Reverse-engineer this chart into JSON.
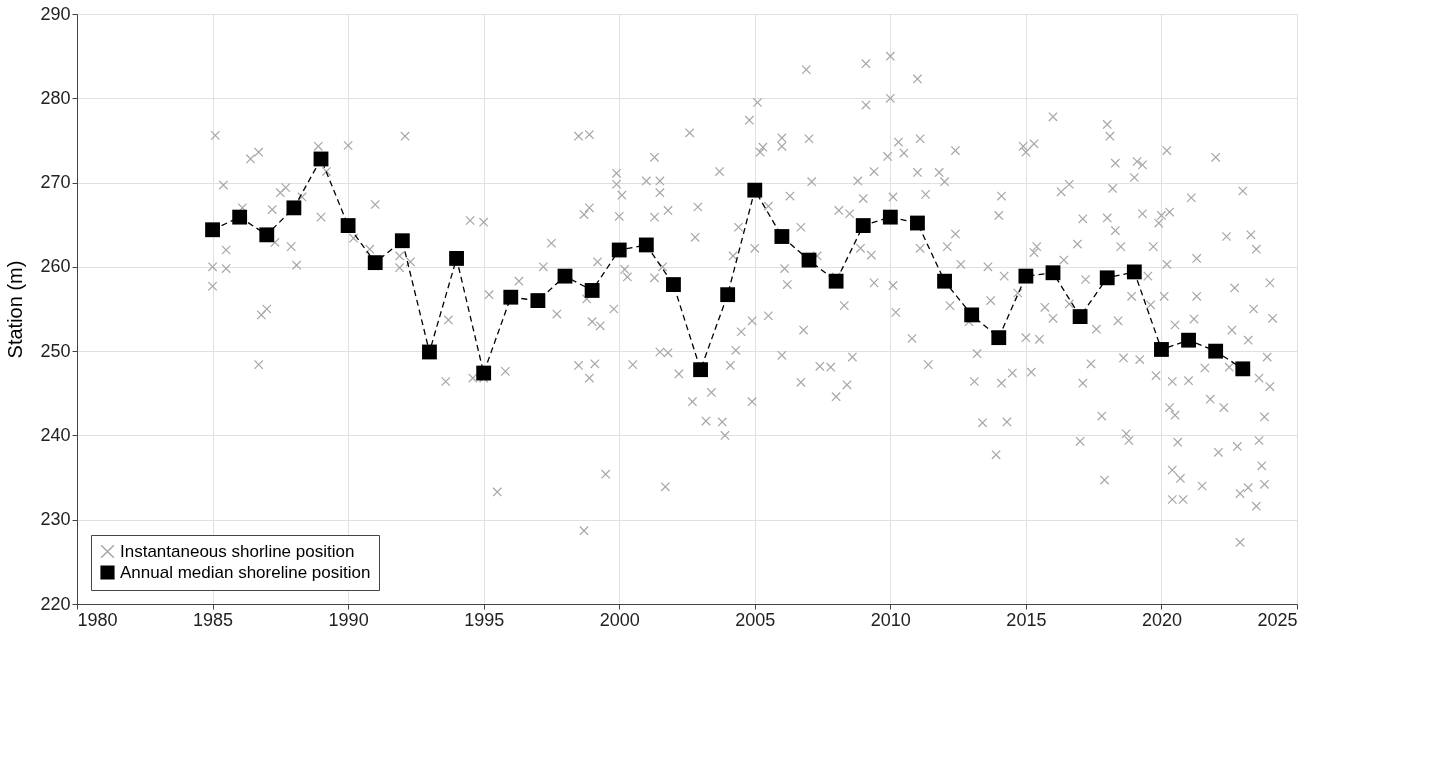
{
  "chart_data": {
    "type": "scatter",
    "ylabel": "Station (m)",
    "xlim": [
      1980,
      2025
    ],
    "xticks": [
      1980,
      1985,
      1990,
      1995,
      2000,
      2005,
      2010,
      2015,
      2020,
      2025
    ],
    "ylim": [
      220,
      290
    ],
    "yticks": [
      220,
      230,
      240,
      250,
      260,
      270,
      280,
      290
    ],
    "grid": true,
    "legend": "bottom left",
    "series": [
      {
        "name": "Instantaneous shorline position",
        "marker": "cross",
        "color": "#a6a6a6",
        "x": [
          1985.1,
          1985.0,
          1985.0,
          1985.4,
          1985.5,
          1985.5,
          1986.4,
          1986.7,
          1986.7,
          1986.8,
          1987.0,
          1986.1,
          1987.2,
          1987.5,
          1987.7,
          1987.3,
          1987.9,
          1988.1,
          1988.9,
          1989.0,
          1989.2,
          1988.3,
          1990.0,
          1990.2,
          1990.8,
          1991.0,
          1991.9,
          1992.1,
          1991.9,
          1992.3,
          1993.6,
          1993.7,
          1994.5,
          1994.6,
          1995.0,
          1995.0,
          1995.2,
          1995.5,
          1995.8,
          1996.3,
          1997.2,
          1997.5,
          1997.7,
          1998.5,
          1998.9,
          1998.5,
          1998.7,
          1998.9,
          1998.9,
          1998.8,
          1998.7,
          1999.1,
          1999.0,
          1999.3,
          1999.5,
          1999.2,
          1999.9,
          1999.9,
          2000.1,
          2000.0,
          2000.3,
          2000.5,
          2000.2,
          1999.8,
          2001.3,
          2001.0,
          2001.5,
          2001.5,
          2001.3,
          2001.8,
          2001.6,
          2001.3,
          2001.5,
          2001.8,
          2001.7,
          2002.2,
          2002.6,
          2002.8,
          2002.9,
          2002.7,
          2003.2,
          2003.4,
          2003.7,
          2003.9,
          2003.8,
          2004.2,
          2004.4,
          2004.5,
          2004.3,
          2004.1,
          2004.8,
          2005.1,
          2005.2,
          2005.3,
          2004.9,
          2005.0,
          2004.9,
          2005.5,
          2005.5,
          2006.0,
          2006.0,
          2006.3,
          2006.1,
          2006.0,
          2006.2,
          2006.9,
          2007.0,
          2007.1,
          2006.7,
          2007.3,
          2007.4,
          2006.8,
          2006.7,
          2007.8,
          2008.0,
          2008.4,
          2008.1,
          2008.5,
          2008.3,
          2008.6,
          2008.0,
          2008.8,
          2009.0,
          2009.1,
          2009.1,
          2009.4,
          2009.3,
          2009.4,
          2008.9,
          2010.0,
          2010.0,
          2009.9,
          2010.3,
          2010.1,
          2010.1,
          2010.2,
          2010.5,
          2011.0,
          2011.1,
          2011.0,
          2010.8,
          2011.1,
          2011.3,
          2011.4,
          2011.8,
          2012.0,
          2012.1,
          2012.4,
          2012.4,
          2012.2,
          2012.6,
          2012.9,
          2013.1,
          2013.4,
          2013.6,
          2013.2,
          2013.7,
          2013.9,
          2014.1,
          2014.0,
          2014.2,
          2014.3,
          2014.1,
          2014.5,
          2014.7,
          2014.9,
          2015.0,
          2015.3,
          2015.0,
          2015.3,
          2015.5,
          2015.2,
          2015.4,
          2015.7,
          2016.0,
          2016.3,
          2016.6,
          2016.4,
          2016.0,
          2016.6,
          2016.9,
          2017.1,
          2017.2,
          2017.1,
          2017.0,
          2017.6,
          2017.4,
          2017.8,
          2017.9,
          2018.0,
          2018.1,
          2018.3,
          2018.2,
          2018.3,
          2018.0,
          2018.4,
          2018.6,
          2018.7,
          2018.8,
          2018.5,
          2018.9,
          2019.1,
          2019.3,
          2019.0,
          2019.3,
          2019.5,
          2019.2,
          2019.6,
          2019.8,
          2019.9,
          2019.7,
          2020.0,
          2020.3,
          2020.2,
          2020.1,
          2020.4,
          2020.5,
          2020.3,
          2020.6,
          2020.4,
          2020.7,
          2020.4,
          2020.8,
          2020.2,
          2020.5,
          2021.0,
          2021.1,
          2021.3,
          2021.2,
          2021.6,
          2021.5,
          2021.8,
          2021.3,
          2022.0,
          2022.1,
          2022.4,
          2022.5,
          2022.3,
          2022.6,
          2022.8,
          2022.7,
          2022.9,
          2022.9,
          2023.0,
          2023.2,
          2023.2,
          2023.4,
          2023.3,
          2023.5,
          2023.6,
          2023.5,
          2023.7,
          2023.8,
          2023.6,
          2023.9,
          2024.0,
          2024.1,
          2023.8,
          2024.0
        ],
        "values": [
          275.6,
          260,
          257.7,
          269.7,
          262,
          259.8,
          272.8,
          273.6,
          248.4,
          254.3,
          255,
          267,
          266.8,
          268.8,
          269.4,
          262.9,
          262.4,
          260.2,
          274.3,
          265.9,
          271.3,
          268.3,
          274.4,
          263.4,
          262.1,
          267.4,
          261.3,
          275.5,
          259.9,
          260.6,
          246.4,
          253.7,
          265.5,
          246.8,
          265.3,
          246.8,
          256.7,
          233.3,
          247.6,
          258.3,
          260,
          262.8,
          254.4,
          275.5,
          275.7,
          248.3,
          266.2,
          267,
          246.8,
          256.2,
          228.7,
          248.5,
          253.5,
          253.0,
          235.4,
          260.6,
          271.1,
          269.8,
          268.5,
          266,
          258.8,
          248.4,
          259.7,
          255,
          273,
          270.2,
          270.2,
          268.8,
          265.9,
          266.7,
          260,
          258.7,
          249.9,
          249.8,
          233.9,
          247.3,
          275.9,
          263.5,
          267.1,
          244,
          241.7,
          245.1,
          271.3,
          240,
          241.6,
          261.3,
          264.7,
          252.3,
          250.1,
          248.3,
          277.4,
          279.5,
          273.6,
          274.2,
          244,
          262.2,
          253.6,
          254.2,
          267.2,
          275.3,
          274.3,
          268.4,
          259.8,
          249.5,
          257.9,
          283.4,
          275.2,
          270.1,
          264.7,
          261.3,
          248.2,
          252.5,
          246.3,
          248.1,
          244.6,
          246,
          266.7,
          266.3,
          255.4,
          249.3,
          258.8,
          270.2,
          268.1,
          284.1,
          279.2,
          271.3,
          261.4,
          258.1,
          262.2,
          285,
          280,
          273.1,
          274.8,
          268.3,
          257.8,
          254.6,
          273.5,
          282.3,
          275.2,
          271.2,
          251.5,
          262.2,
          268.6,
          248.4,
          271.2,
          270.1,
          262.4,
          273.8,
          263.9,
          255.4,
          260.3,
          253.5,
          246.4,
          241.5,
          260,
          249.7,
          256,
          237.7,
          268.4,
          266.1,
          258.9,
          241.6,
          246.2,
          247.4,
          256.9,
          274.3,
          273.6,
          274.6,
          251.6,
          261.7,
          251.4,
          247.5,
          262.4,
          255.2,
          277.8,
          268.9,
          269.8,
          260.8,
          253.9,
          255.6,
          262.7,
          265.7,
          258.5,
          246.2,
          239.3,
          252.6,
          248.5,
          242.3,
          234.7,
          276.9,
          275.5,
          272.3,
          269.3,
          264.3,
          265.8,
          253.6,
          249.2,
          240.2,
          239.4,
          262.4,
          256.5,
          272.5,
          272.1,
          270.6,
          266.3,
          258.9,
          249,
          255.5,
          247.1,
          265.2,
          262.4,
          266.1,
          266.5,
          260.3,
          256.5,
          246.4,
          242.4,
          243.3,
          239.2,
          235.9,
          234.9,
          232.4,
          232.4,
          273.8,
          253.1,
          246.5,
          268.2,
          261,
          253.8,
          248,
          234,
          244.3,
          256.5,
          273,
          238,
          263.6,
          248.1,
          243.3,
          252.5,
          238.7,
          257.5,
          227.3,
          233.1,
          269,
          233.8,
          251.3,
          255,
          263.8,
          262.1,
          246.8,
          231.6,
          236.4,
          242.2,
          239.4,
          249.3,
          258.1,
          253.9,
          234.2,
          245.8
        ]
      },
      {
        "name": "Annual median shoreline position",
        "type": "line",
        "marker": "square",
        "line_style": "dashed",
        "color": "#000000",
        "x": [
          1985,
          1986,
          1987,
          1988,
          1989,
          1990,
          1991,
          1992,
          1993,
          1994,
          1995,
          1996,
          1997,
          1998,
          1999,
          2000,
          2001,
          2002,
          2003,
          2004,
          2005,
          2006,
          2007,
          2008,
          2009,
          2010,
          2011,
          2012,
          2013,
          2014,
          2015,
          2016,
          2017,
          2018,
          2019,
          2020,
          2021,
          2022,
          2023
        ],
        "values": [
          264.4,
          265.9,
          263.8,
          267.0,
          272.8,
          264.9,
          260.5,
          263.1,
          249.9,
          261.0,
          247.4,
          256.4,
          256.0,
          258.9,
          257.2,
          262.0,
          262.6,
          257.9,
          247.8,
          256.7,
          269.1,
          263.6,
          260.8,
          258.3,
          264.9,
          265.9,
          265.2,
          258.3,
          254.3,
          251.6,
          258.9,
          259.3,
          254.1,
          258.7,
          259.4,
          250.2,
          251.3,
          250.0,
          247.9
        ]
      }
    ]
  }
}
